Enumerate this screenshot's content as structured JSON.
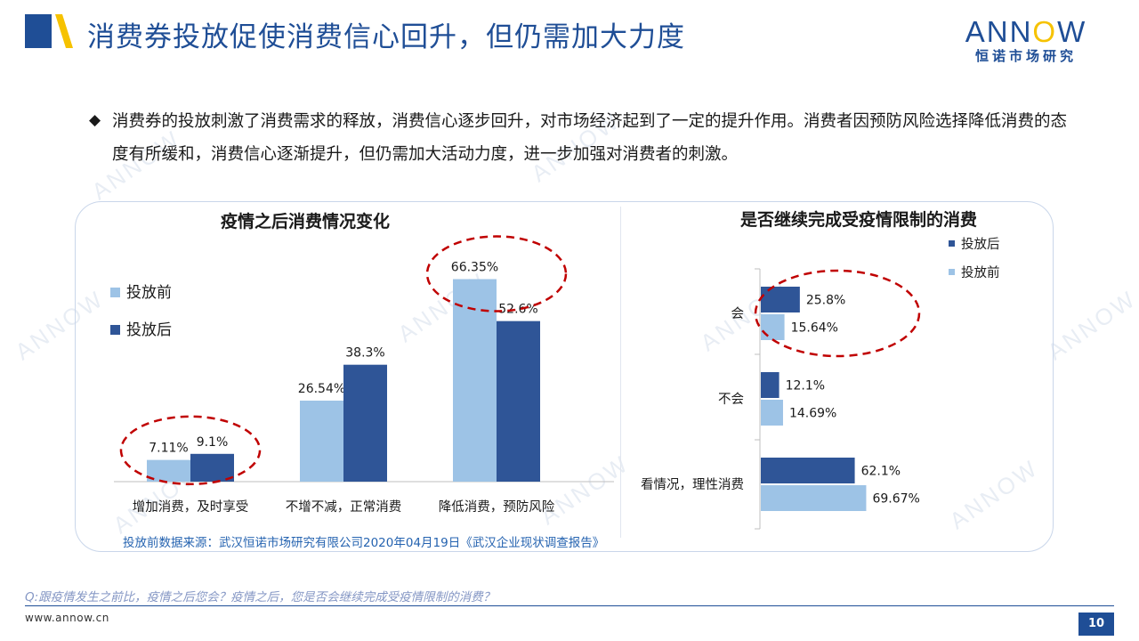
{
  "header": {
    "title": "消费券投放促使消费信心回升，但仍需加大力度",
    "brand_name": "ANNOW",
    "brand_sub": "恒诺市场研究"
  },
  "bullet": {
    "text": "消费券的投放刺激了消费需求的释放，消费信心逐步回升，对市场经济起到了一定的提升作用。消费者因预防风险选择降低消费的态度有所缓和，消费信心逐渐提升，但仍需加大活动力度，进一步加强对消费者的刺激。"
  },
  "colors": {
    "before": "#9dc3e6",
    "after": "#2f5597",
    "accent": "#1f4e96",
    "highlight_ring": "#c00000"
  },
  "chart_data": [
    {
      "type": "bar",
      "title": "疫情之后消费情况变化",
      "categories": [
        "增加消费，及时享受",
        "不增不减，正常消费",
        "降低消费，预防风险"
      ],
      "series": [
        {
          "name": "投放前",
          "values": [
            7.11,
            26.54,
            66.35
          ],
          "labels": [
            "7.11%",
            "26.54%",
            "66.35%"
          ]
        },
        {
          "name": "投放后",
          "values": [
            9.1,
            38.3,
            52.6
          ],
          "labels": [
            "9.1%",
            "38.3%",
            "52.6%"
          ]
        }
      ],
      "ylim": [
        0,
        70
      ],
      "legend": "left",
      "highlighted_categories": [
        "增加消费，及时享受",
        "降低消费，预防风险"
      ]
    },
    {
      "type": "bar",
      "orientation": "horizontal",
      "title": "是否继续完成受疫情限制的消费",
      "categories": [
        "会",
        "不会",
        "看情况，理性消费"
      ],
      "series": [
        {
          "name": "投放后",
          "values": [
            25.8,
            12.1,
            62.1
          ],
          "labels": [
            "25.8%",
            "12.1%",
            "62.1%"
          ]
        },
        {
          "name": "投放前",
          "values": [
            15.64,
            14.69,
            69.67
          ],
          "labels": [
            "15.64%",
            "14.69%",
            "69.67%"
          ]
        }
      ],
      "xlim": [
        0,
        80
      ],
      "legend": "top-right",
      "highlighted_categories": [
        "会"
      ]
    }
  ],
  "notes": {
    "source": "投放前数据来源：武汉恒诺市场研究有限公司2020年04月19日《武汉企业现状调查报告》",
    "question": "Q:跟疫情发生之前比，疫情之后您会？疫情之后，您是否会继续完成受疫情限制的消费？"
  },
  "footer": {
    "url": "www.annow.cn",
    "page": "10"
  }
}
